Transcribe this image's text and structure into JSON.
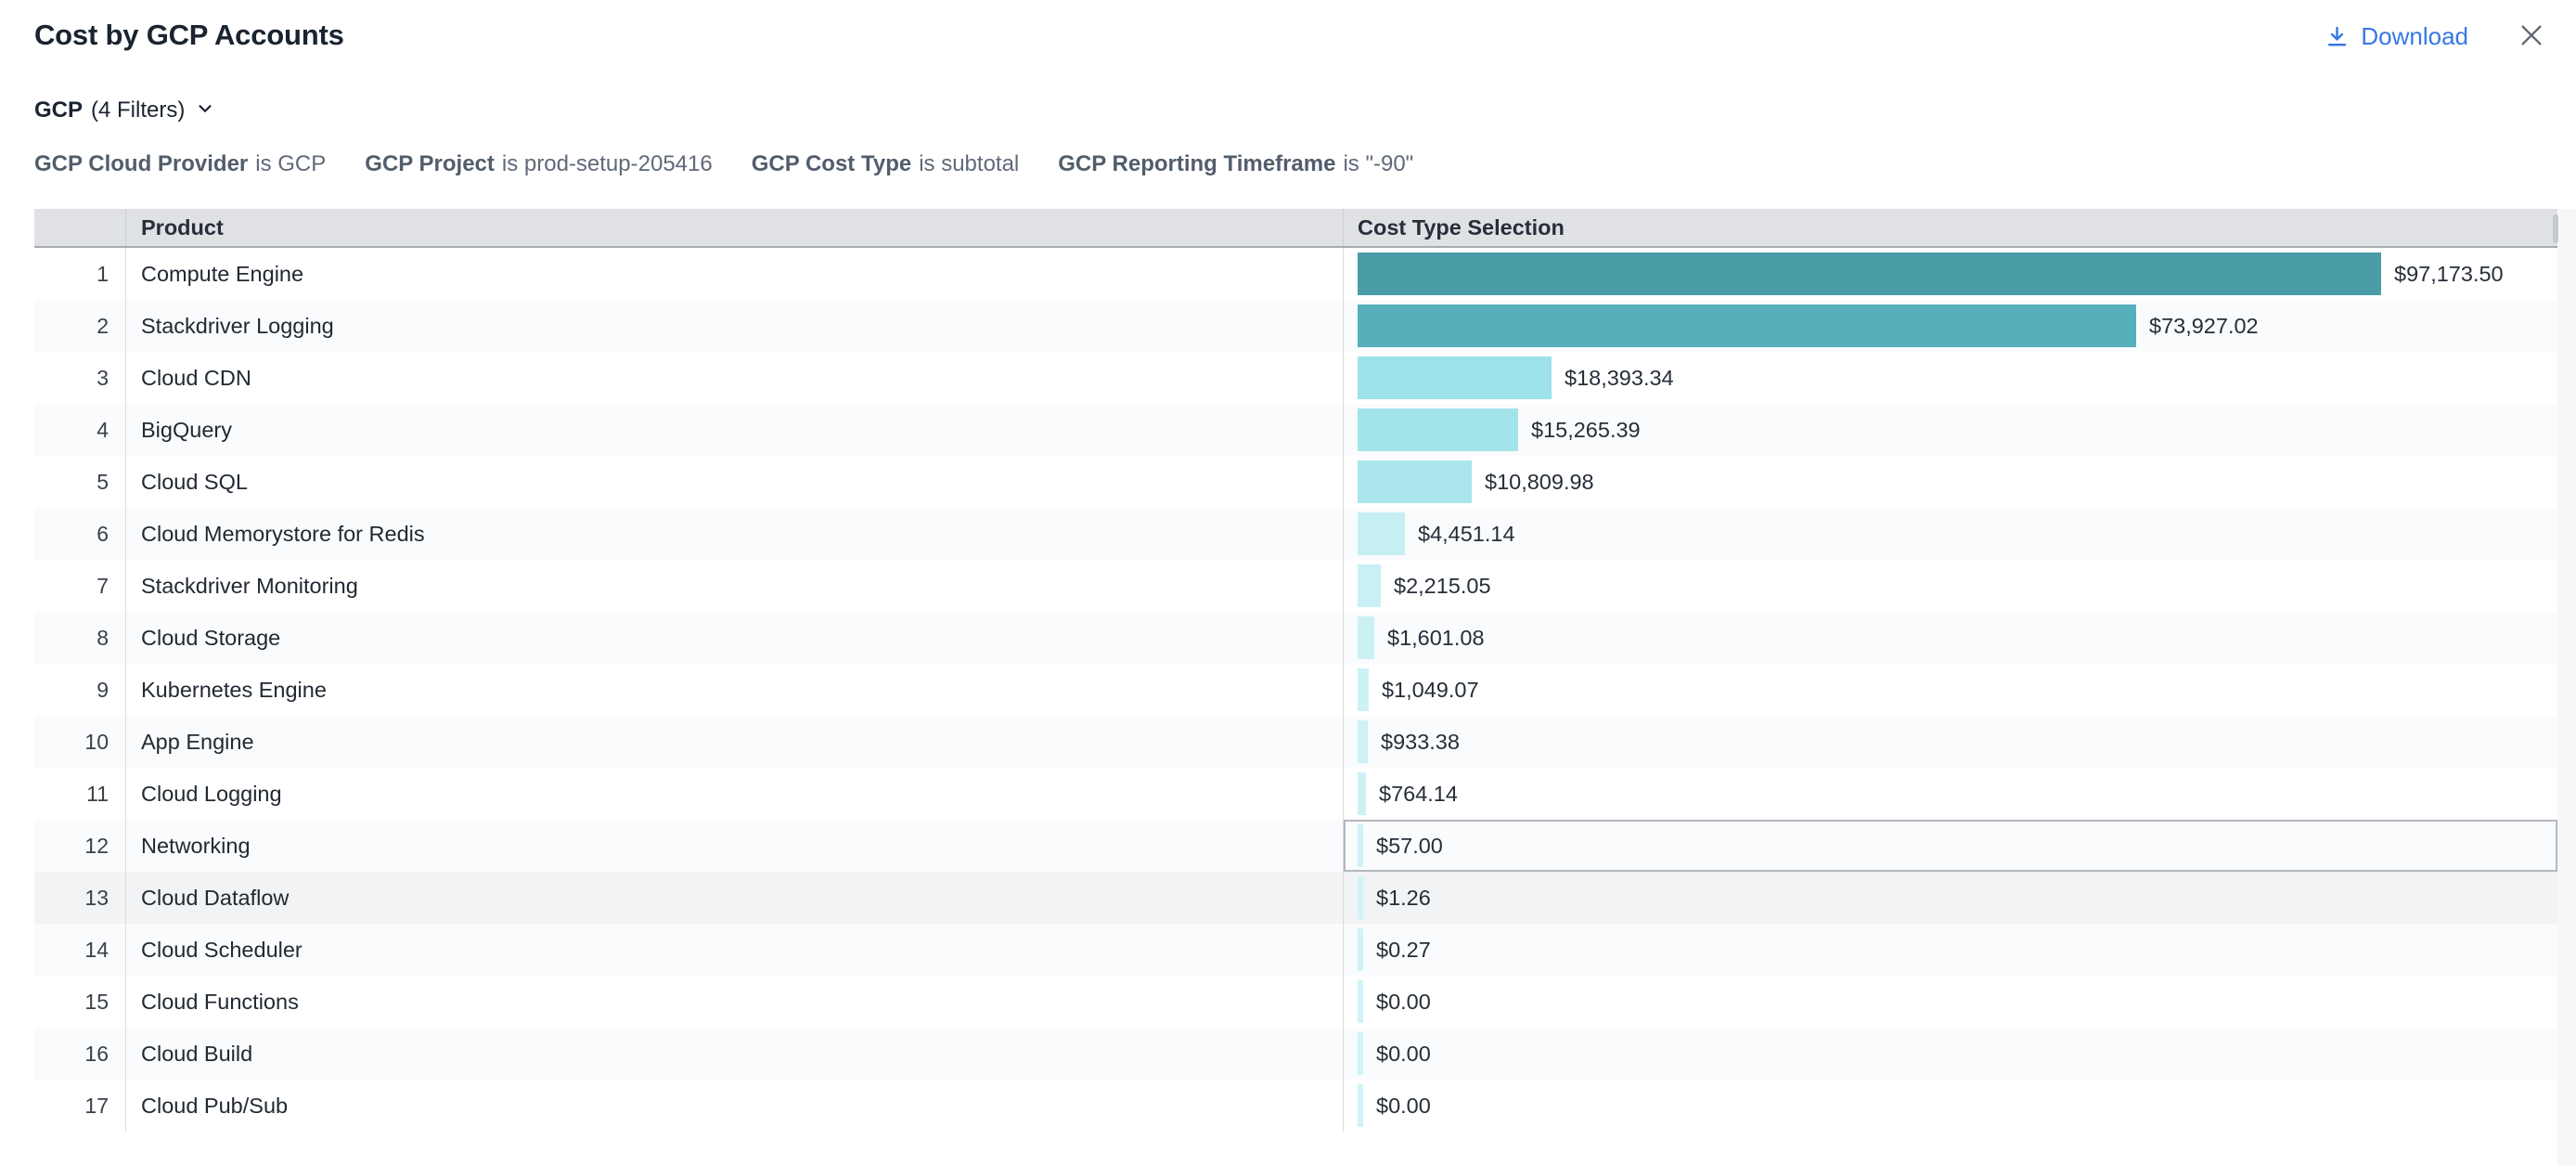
{
  "header": {
    "title": "Cost by GCP Accounts",
    "download_label": "Download"
  },
  "filters": {
    "summary_name": "GCP",
    "summary_count": "(4 Filters)",
    "items": [
      {
        "field": "GCP Cloud Provider",
        "cond": "is GCP"
      },
      {
        "field": "GCP Project",
        "cond": "is prod-setup-205416"
      },
      {
        "field": "GCP Cost Type",
        "cond": "is subtotal"
      },
      {
        "field": "GCP Reporting Timeframe",
        "cond": "is \"-90\""
      }
    ]
  },
  "table": {
    "columns": [
      "",
      "Product",
      "Cost Type Selection"
    ],
    "focused_rank": 12,
    "highlighted_rank": 13
  },
  "colors": {
    "accent_download": "#3778E5",
    "focus_border": "#B4B8BE",
    "header_bg": "#DFE1E4"
  },
  "chart_data": {
    "type": "bar",
    "orientation": "horizontal",
    "title": "Cost by GCP Accounts",
    "value_column": "Cost Type Selection",
    "xlim": [
      0,
      97173.5
    ],
    "grid": false,
    "legend": "none",
    "ranks": [
      "1",
      "2",
      "3",
      "4",
      "5",
      "6",
      "7",
      "8",
      "9",
      "10",
      "11",
      "12",
      "13",
      "14",
      "15",
      "16",
      "17"
    ],
    "categories": [
      "Compute Engine",
      "Stackdriver Logging",
      "Cloud CDN",
      "BigQuery",
      "Cloud SQL",
      "Cloud Memorystore for Redis",
      "Stackdriver Monitoring",
      "Cloud Storage",
      "Kubernetes Engine",
      "App Engine",
      "Cloud Logging",
      "Networking",
      "Cloud Dataflow",
      "Cloud Scheduler",
      "Cloud Functions",
      "Cloud Build",
      "Cloud Pub/Sub"
    ],
    "values": [
      97173.5,
      73927.02,
      18393.34,
      15265.39,
      10809.98,
      4451.14,
      2215.05,
      1601.08,
      1049.07,
      933.38,
      764.14,
      57.0,
      1.26,
      0.27,
      0.0,
      0.0,
      0.0
    ],
    "value_labels": [
      "$97,173.50",
      "$73,927.02",
      "$18,393.34",
      "$15,265.39",
      "$10,809.98",
      "$4,451.14",
      "$2,215.05",
      "$1,601.08",
      "$1,049.07",
      "$933.38",
      "$764.14",
      "$57.00",
      "$1.26",
      "$0.27",
      "$0.00",
      "$0.00",
      "$0.00"
    ],
    "bar_colors": [
      "#4A9DA7",
      "#55B0BC",
      "#9DE1E9",
      "#A3E3EA",
      "#AAE6EC",
      "#C5EFF3",
      "#C9F1F5",
      "#CBF1F5",
      "#CCF2F5",
      "#CDF2F6",
      "#CDF2F6",
      "#CEF3F6",
      "#CFF3F7",
      "#CFF3F7",
      "#D0F4F7",
      "#D0F4F7",
      "#D0F4F7"
    ]
  }
}
